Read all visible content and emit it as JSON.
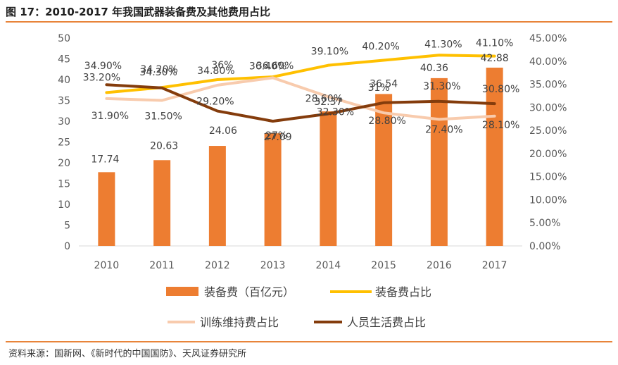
{
  "header": {
    "title": "图 17：2010-2017 年我国武器装备费及其他费用占比"
  },
  "footer": {
    "source": "资料来源：国新网、《新时代的中国国防》、天风证券研究所"
  },
  "colors": {
    "accent": "#E8843A",
    "bar": "#ED7D31",
    "equipment_share": "#FFC000",
    "training_share": "#F8CBAD",
    "personnel_share": "#843C0C",
    "axis": "#D9D9D9"
  },
  "chart_data": {
    "type": "bar",
    "title": "2010-2017 年我国武器装备费及其他费用占比",
    "categories": [
      "2010",
      "2011",
      "2012",
      "2013",
      "2014",
      "2015",
      "2016",
      "2017"
    ],
    "ylim": [
      0,
      50
    ],
    "y_ticks": [
      "0",
      "5",
      "10",
      "15",
      "20",
      "25",
      "30",
      "35",
      "40",
      "45",
      "50"
    ],
    "y2lim": [
      0,
      45
    ],
    "y2_ticks": [
      "0.00%",
      "5.00%",
      "10.00%",
      "15.00%",
      "20.00%",
      "25.00%",
      "30.00%",
      "35.00%",
      "40.00%",
      "45.00%"
    ],
    "legend_position": "bottom",
    "series": [
      {
        "name": "装备费（百亿元）",
        "type": "bar",
        "axis": "left",
        "values": [
          17.74,
          20.63,
          24.06,
          27.09,
          32.37,
          36.54,
          40.36,
          42.88
        ],
        "labels": [
          "17.74",
          "20.63",
          "24.06",
          "27.09",
          "32.37",
          "36.54",
          "40.36",
          "42.88"
        ]
      },
      {
        "name": "装备费占比",
        "type": "line",
        "axis": "right",
        "values": [
          33.2,
          34.3,
          36,
          36.6,
          39.1,
          40.2,
          41.3,
          41.1
        ],
        "labels": [
          "33.20%",
          "34.30%",
          "36%",
          "36.60%",
          "39.10%",
          "40.20%",
          "41.30%",
          "41.10%"
        ]
      },
      {
        "name": "训练维持费占比",
        "type": "line",
        "axis": "right",
        "values": [
          31.9,
          31.5,
          34.8,
          36.4,
          32.3,
          28.8,
          27.4,
          28.1
        ],
        "labels": [
          "31.90%",
          "31.50%",
          "34.80%",
          "36.40%",
          "32.30%",
          "28.80%",
          "27.40%",
          "28.10%"
        ]
      },
      {
        "name": "人员生活费占比",
        "type": "line",
        "axis": "right",
        "values": [
          34.9,
          34.2,
          29.2,
          27,
          28.6,
          31,
          31.3,
          30.8
        ],
        "labels": [
          "34.90%",
          "34.20%",
          "29.20%",
          "27%",
          "28.60%",
          "31%",
          "31.30%",
          "30.80%"
        ]
      }
    ]
  }
}
